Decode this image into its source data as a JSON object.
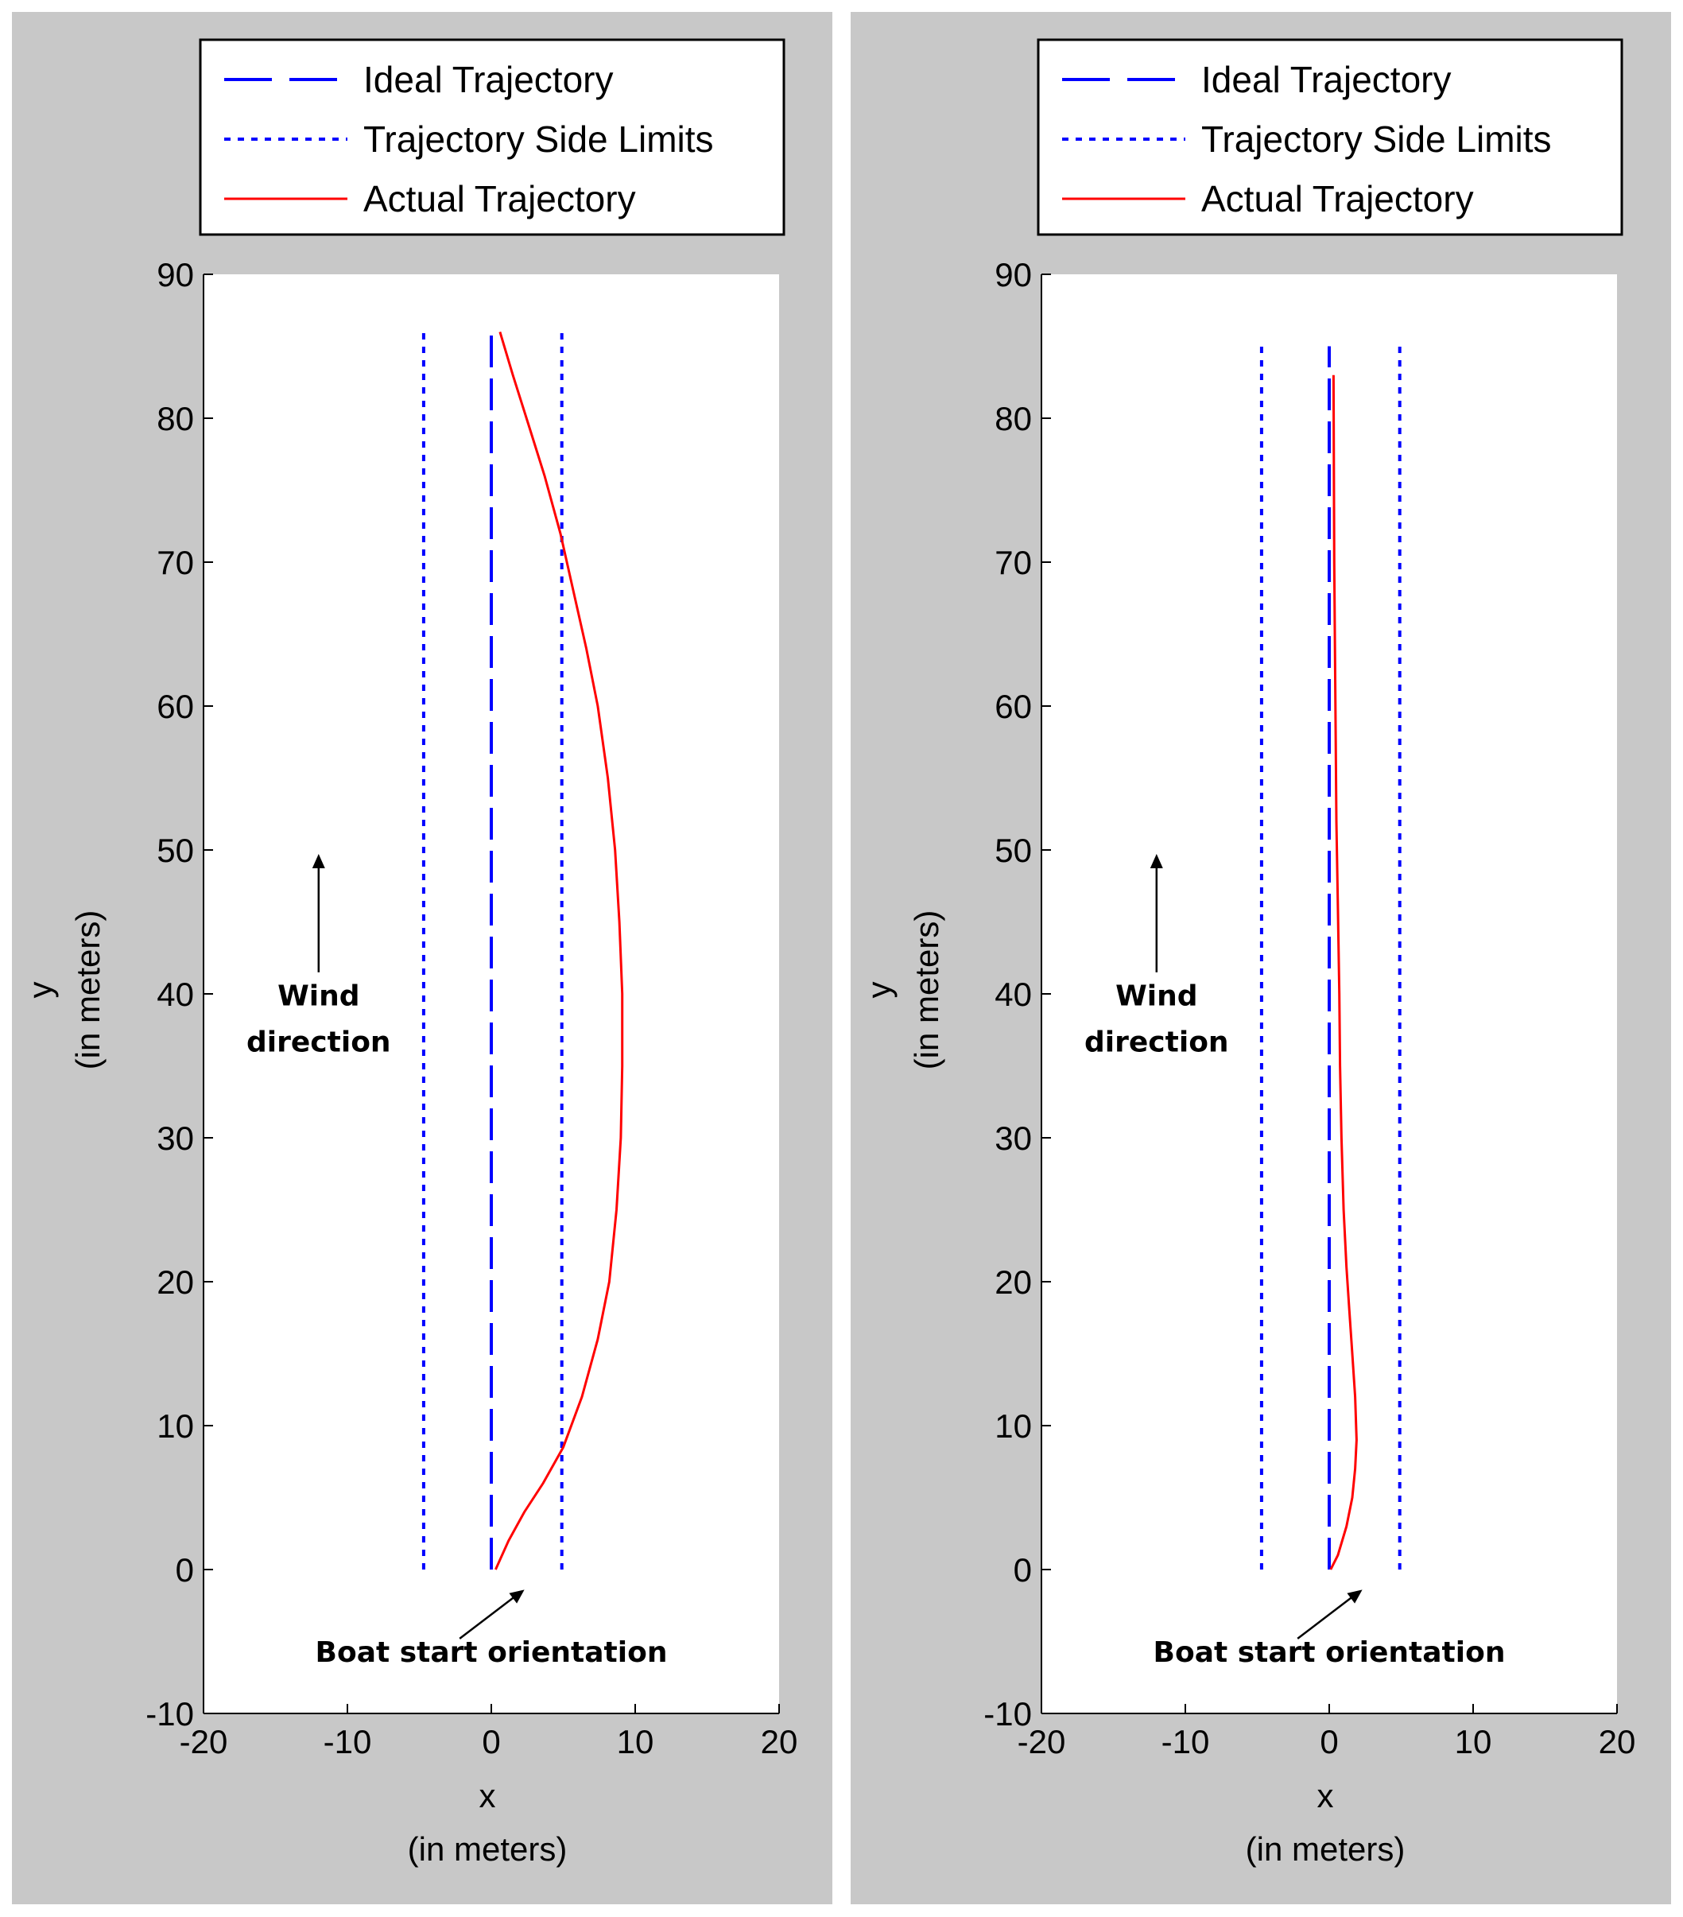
{
  "colors": {
    "ideal": "#0000ff",
    "limits": "#0000ff",
    "actual": "#ff0000",
    "panel_background": "#c8c8c8"
  },
  "chart_data": [
    {
      "type": "line",
      "title": "",
      "xlabel": "x",
      "xlabel_unit": "(in meters)",
      "ylabel": "y",
      "ylabel_unit": "(in meters)",
      "xlim": [
        -20,
        20
      ],
      "ylim": [
        -10,
        90
      ],
      "xticks": [
        -20,
        -10,
        0,
        10,
        20
      ],
      "yticks": [
        -10,
        0,
        10,
        20,
        30,
        40,
        50,
        60,
        70,
        80,
        90
      ],
      "legend_position": "top",
      "legend": [
        "Ideal Trajectory",
        "Trajectory Side Limits",
        "Actual Trajectory"
      ],
      "series": [
        {
          "name": "Ideal Trajectory",
          "style": "dashed",
          "x": [
            0,
            0
          ],
          "y": [
            0,
            86
          ]
        },
        {
          "name": "Trajectory Side Limits",
          "style": "dotted",
          "x": [
            -4.7,
            -4.7
          ],
          "y": [
            0,
            86
          ]
        },
        {
          "name": "Trajectory Side Limits",
          "style": "dotted",
          "x": [
            4.9,
            4.9
          ],
          "y": [
            0,
            86
          ]
        },
        {
          "name": "Actual Trajectory",
          "style": "solid",
          "x": [
            0.3,
            1.2,
            2.3,
            3.6,
            5.0,
            6.3,
            7.4,
            8.2,
            8.7,
            9.0,
            9.1,
            9.1,
            8.9,
            8.6,
            8.1,
            7.4,
            6.6,
            5.7,
            4.8,
            3.7,
            2.6,
            1.5,
            0.6
          ],
          "y": [
            0,
            2,
            4,
            6,
            8.5,
            12,
            16,
            20,
            25,
            30,
            35,
            40,
            45,
            50,
            55,
            60,
            64,
            68,
            72,
            76,
            79.5,
            83,
            86
          ]
        }
      ],
      "annotations": {
        "wind_label_1": "Wind",
        "wind_label_2": "direction",
        "boat_label": "Boat start orientation"
      }
    },
    {
      "type": "line",
      "title": "",
      "xlabel": "x",
      "xlabel_unit": "(in meters)",
      "ylabel": "y",
      "ylabel_unit": "(in meters)",
      "xlim": [
        -20,
        20
      ],
      "ylim": [
        -10,
        90
      ],
      "xticks": [
        -20,
        -10,
        0,
        10,
        20
      ],
      "yticks": [
        -10,
        0,
        10,
        20,
        30,
        40,
        50,
        60,
        70,
        80,
        90
      ],
      "legend_position": "top",
      "legend": [
        "Ideal Trajectory",
        "Trajectory Side Limits",
        "Actual Trajectory"
      ],
      "series": [
        {
          "name": "Ideal Trajectory",
          "style": "dashed",
          "x": [
            0,
            0
          ],
          "y": [
            0,
            85
          ]
        },
        {
          "name": "Trajectory Side Limits",
          "style": "dotted",
          "x": [
            -4.7,
            -4.7
          ],
          "y": [
            0,
            85
          ]
        },
        {
          "name": "Trajectory Side Limits",
          "style": "dotted",
          "x": [
            4.9,
            4.9
          ],
          "y": [
            0,
            85
          ]
        },
        {
          "name": "Actual Trajectory",
          "style": "solid",
          "x": [
            0.1,
            0.6,
            1.2,
            1.6,
            1.8,
            1.9,
            1.8,
            1.6,
            1.4,
            1.2,
            1.0,
            0.85,
            0.75,
            0.7,
            0.6,
            0.5,
            0.45,
            0.4,
            0.35,
            0.3
          ],
          "y": [
            0,
            1,
            3,
            5,
            7,
            9,
            12,
            15,
            18,
            21,
            25,
            30,
            35,
            40,
            46,
            52,
            58,
            64,
            70,
            83
          ]
        }
      ],
      "annotations": {
        "wind_label_1": "Wind",
        "wind_label_2": "direction",
        "boat_label": "Boat start orientation"
      }
    }
  ]
}
